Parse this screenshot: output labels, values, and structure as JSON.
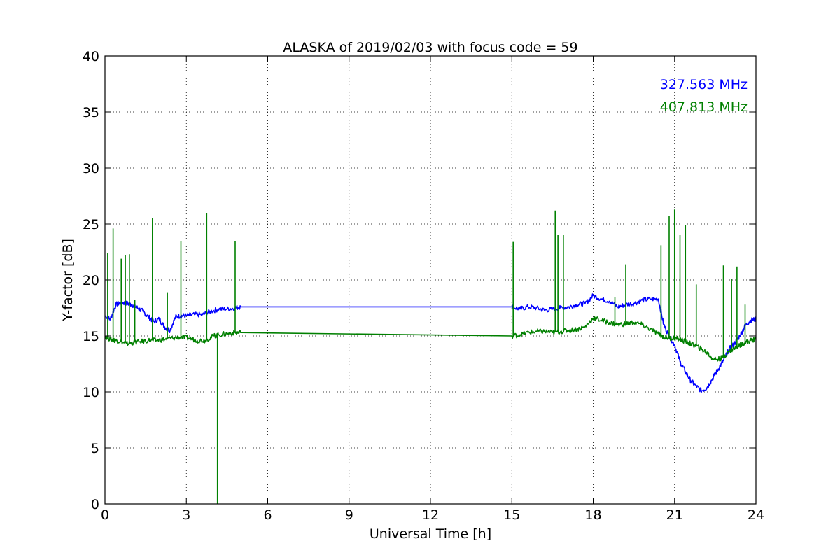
{
  "chart_data": {
    "type": "line",
    "title": "ALASKA of 2019/02/03 with focus code = 59",
    "xlabel": "Universal Time [h]",
    "ylabel": "Y-factor [dB]",
    "xlim": [
      0,
      24
    ],
    "ylim": [
      0,
      40
    ],
    "xticks": [
      0,
      3,
      6,
      9,
      12,
      15,
      18,
      21,
      24
    ],
    "yticks": [
      0,
      5,
      10,
      15,
      20,
      25,
      30,
      35,
      40
    ],
    "grid": true,
    "legend_placement": "top-right",
    "series": [
      {
        "name": "327.563 MHz",
        "color": "#0000ff",
        "x": [
          0,
          0.2,
          0.4,
          0.6,
          0.8,
          1.0,
          1.2,
          1.4,
          1.6,
          1.8,
          2.0,
          2.2,
          2.4,
          2.6,
          2.8,
          3.0,
          3.3,
          3.6,
          3.9,
          4.2,
          4.5,
          4.8,
          5.0,
          15.0,
          15.3,
          15.6,
          15.9,
          16.2,
          16.5,
          16.8,
          17.1,
          17.4,
          17.7,
          18.0,
          18.3,
          18.6,
          18.9,
          19.2,
          19.5,
          19.8,
          20.1,
          20.4,
          20.6,
          20.8,
          21.0,
          21.2,
          21.4,
          21.6,
          21.8,
          22.0,
          22.2,
          22.4,
          22.6,
          22.8,
          23.0,
          23.2,
          23.4,
          23.6,
          23.8,
          24.0
        ],
        "y": [
          16.8,
          16.5,
          17.8,
          18.0,
          17.9,
          17.8,
          17.5,
          17.2,
          16.7,
          16.3,
          16.5,
          15.8,
          15.5,
          16.7,
          16.8,
          16.8,
          16.9,
          16.9,
          17.2,
          17.4,
          17.4,
          17.5,
          17.6,
          17.6,
          17.4,
          17.6,
          17.5,
          17.3,
          17.4,
          17.5,
          17.6,
          17.8,
          17.9,
          18.6,
          18.3,
          18.1,
          17.6,
          17.8,
          17.9,
          18.2,
          18.3,
          18.3,
          16.0,
          15.0,
          14.2,
          12.7,
          11.8,
          11.0,
          10.5,
          10.1,
          10.4,
          11.2,
          12.0,
          12.8,
          13.8,
          14.3,
          15.0,
          15.9,
          16.4,
          16.5
        ]
      },
      {
        "name": "407.813 MHz",
        "color": "#008000",
        "x": [
          0,
          0.2,
          0.4,
          0.6,
          0.8,
          1.0,
          1.3,
          1.6,
          1.9,
          2.2,
          2.5,
          2.8,
          3.1,
          3.4,
          3.7,
          4.0,
          4.2,
          4.5,
          4.8,
          5.0,
          15.0,
          15.3,
          15.6,
          15.9,
          16.2,
          16.5,
          16.8,
          17.1,
          17.4,
          17.7,
          18.0,
          18.3,
          18.6,
          18.9,
          19.2,
          19.5,
          19.8,
          20.1,
          20.4,
          20.6,
          20.8,
          21.0,
          21.2,
          21.4,
          21.6,
          21.8,
          22.0,
          22.2,
          22.4,
          22.6,
          22.8,
          23.0,
          23.2,
          23.4,
          23.6,
          23.8,
          24.0
        ],
        "y": [
          15.0,
          14.7,
          14.6,
          14.5,
          14.3,
          14.4,
          14.5,
          14.6,
          14.6,
          14.7,
          14.8,
          14.9,
          14.8,
          14.6,
          14.6,
          15.0,
          15.1,
          15.2,
          15.3,
          15.3,
          15.0,
          15.1,
          15.3,
          15.4,
          15.4,
          15.3,
          15.4,
          15.5,
          15.6,
          15.8,
          16.6,
          16.4,
          16.2,
          16.0,
          16.1,
          16.2,
          16.0,
          15.6,
          15.2,
          14.9,
          14.8,
          14.8,
          14.7,
          14.5,
          14.3,
          14.1,
          13.8,
          13.5,
          13.0,
          12.9,
          13.1,
          13.6,
          13.9,
          14.2,
          14.4,
          14.6,
          14.7
        ],
        "spikes": [
          {
            "x": 0.1,
            "y": 22.4
          },
          {
            "x": 0.3,
            "y": 24.6
          },
          {
            "x": 0.6,
            "y": 21.9
          },
          {
            "x": 0.75,
            "y": 22.2
          },
          {
            "x": 0.9,
            "y": 22.3
          },
          {
            "x": 1.1,
            "y": 18.2
          },
          {
            "x": 1.75,
            "y": 25.5
          },
          {
            "x": 2.3,
            "y": 18.9
          },
          {
            "x": 2.8,
            "y": 23.5
          },
          {
            "x": 3.75,
            "y": 26.0
          },
          {
            "x": 4.8,
            "y": 23.5
          },
          {
            "x": 15.05,
            "y": 23.4
          },
          {
            "x": 16.6,
            "y": 26.2
          },
          {
            "x": 16.7,
            "y": 24.0
          },
          {
            "x": 16.9,
            "y": 24.0
          },
          {
            "x": 18.8,
            "y": 18.5
          },
          {
            "x": 19.2,
            "y": 21.4
          },
          {
            "x": 20.5,
            "y": 23.1
          },
          {
            "x": 20.8,
            "y": 25.7
          },
          {
            "x": 21.0,
            "y": 26.3
          },
          {
            "x": 21.2,
            "y": 24.0
          },
          {
            "x": 21.4,
            "y": 24.9
          },
          {
            "x": 21.8,
            "y": 19.6
          },
          {
            "x": 22.8,
            "y": 21.3
          },
          {
            "x": 23.1,
            "y": 20.1
          },
          {
            "x": 23.3,
            "y": 21.2
          },
          {
            "x": 23.6,
            "y": 17.8
          }
        ],
        "dips": [
          {
            "x": 4.15,
            "y": 0.0
          }
        ]
      }
    ]
  }
}
